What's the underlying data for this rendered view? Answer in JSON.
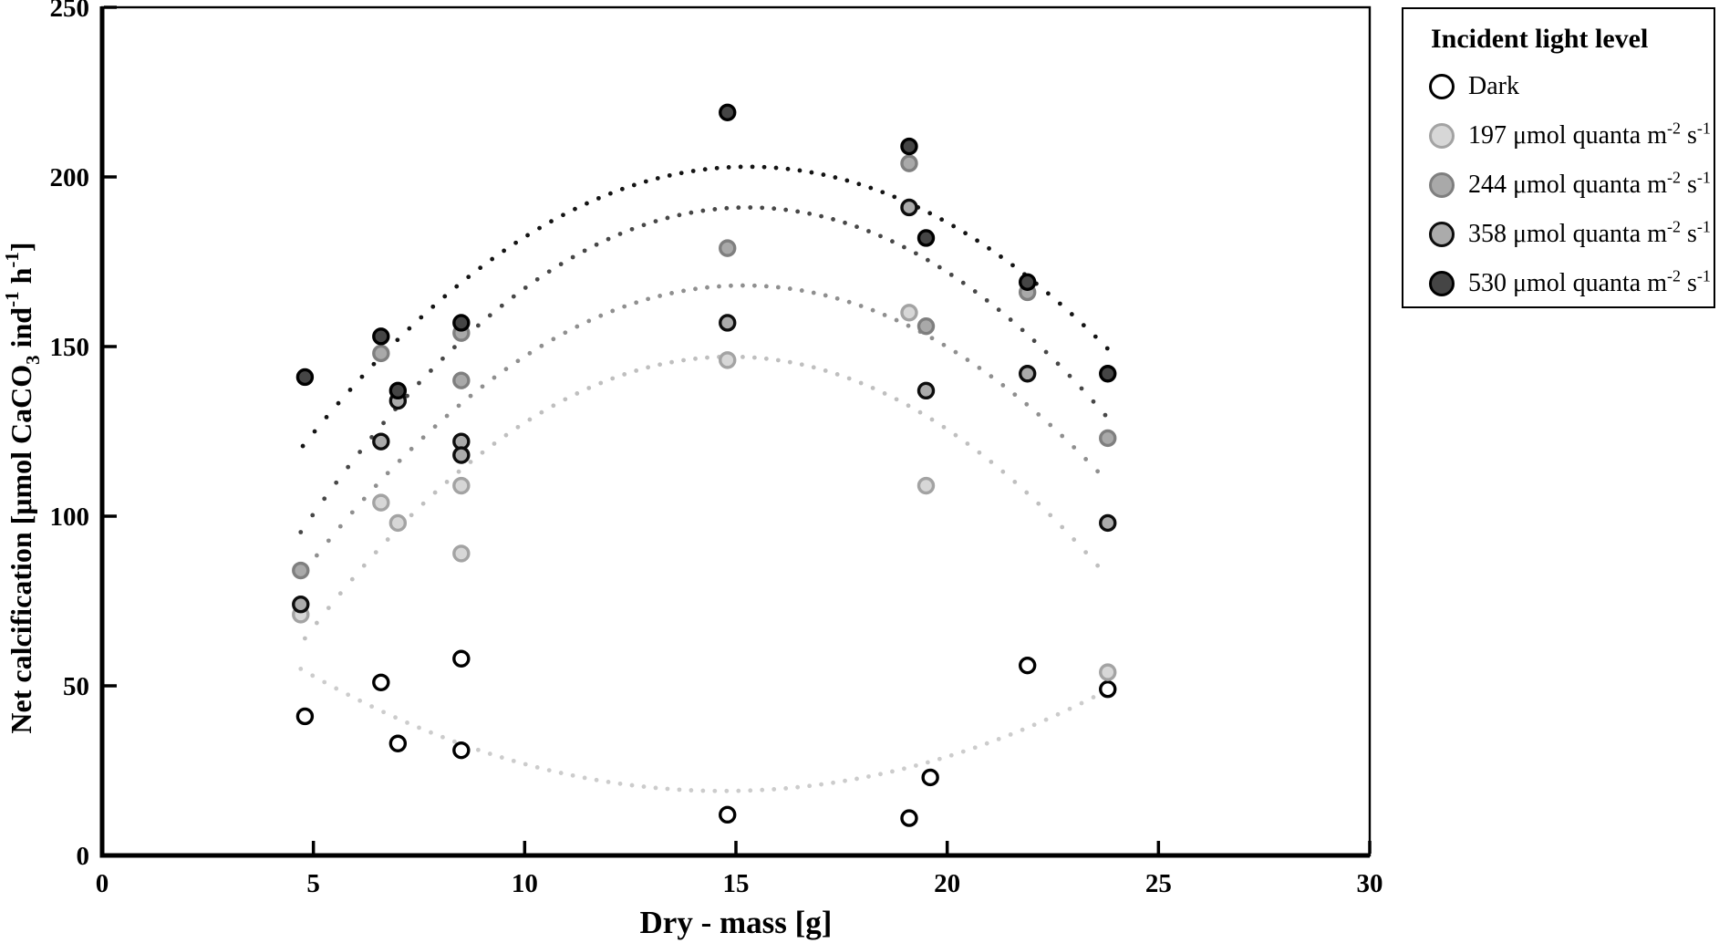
{
  "figure": {
    "background": "#ffffff",
    "x_axis": {
      "label": "Dry - mass [g]",
      "min": 0,
      "max": 30,
      "ticks": [
        0,
        5,
        10,
        15,
        20,
        25,
        30
      ]
    },
    "y_axis": {
      "label": "Net calcification [μmol CaCO3 ind-1 h-1]",
      "min": 0,
      "max": 250,
      "ticks": [
        0,
        50,
        100,
        150,
        200,
        250
      ],
      "title_parts": [
        {
          "text": "Net calcification [μmol CaCO"
        },
        {
          "text": "3",
          "script": "sub"
        },
        {
          "text": " ind"
        },
        {
          "text": "-1",
          "script": "sup"
        },
        {
          "text": " h"
        },
        {
          "text": "-1",
          "script": "sup"
        },
        {
          "text": "]"
        }
      ]
    },
    "legend": {
      "title": "Incident light level",
      "position": "right-outside"
    }
  },
  "chart_data": {
    "type": "scatter",
    "title": "",
    "xlabel": "Dry - mass [g]",
    "ylabel": "Net calcification [μmol CaCO3 ind-1 h-1]",
    "xlim": [
      0,
      30
    ],
    "ylim": [
      0,
      250
    ],
    "grid": false,
    "legend_position": "right",
    "series": [
      {
        "name": "Dark",
        "label_parts": [
          {
            "text": "Dark"
          }
        ],
        "marker": {
          "fill": "#ffffff",
          "stroke": "#000000"
        },
        "trend_color": "#cccccc",
        "points": [
          [
            4.8,
            41
          ],
          [
            6.6,
            51
          ],
          [
            7.0,
            33
          ],
          [
            8.5,
            31
          ],
          [
            8.5,
            58
          ],
          [
            14.8,
            12
          ],
          [
            19.1,
            11
          ],
          [
            19.6,
            23
          ],
          [
            21.9,
            56
          ],
          [
            23.8,
            49
          ]
        ],
        "trend": {
          "shape": "parabola",
          "vertex_x": 14.7,
          "vertex_y": 19,
          "curvature": 0.36,
          "x_range": [
            4.7,
            23.7
          ]
        }
      },
      {
        "name": "197 μmol quanta m-2 s-1",
        "label_parts": [
          {
            "text": "197 μmol quanta m"
          },
          {
            "text": "-2",
            "script": "sup"
          },
          {
            "text": " s"
          },
          {
            "text": "-1",
            "script": "sup"
          }
        ],
        "marker": {
          "fill": "#d7d7d7",
          "stroke": "#a3a3a3"
        },
        "trend_color": "#bfbfbf",
        "points": [
          [
            4.7,
            71
          ],
          [
            6.6,
            104
          ],
          [
            7.0,
            98
          ],
          [
            8.5,
            109
          ],
          [
            8.5,
            89
          ],
          [
            14.8,
            146
          ],
          [
            19.1,
            160
          ],
          [
            19.5,
            109
          ],
          [
            23.8,
            54
          ]
        ],
        "trend": {
          "shape": "parabola",
          "vertex_x": 14.88,
          "vertex_y": 147,
          "curvature": -0.817,
          "x_range": [
            4.8,
            23.8
          ]
        }
      },
      {
        "name": "244 μmol quanta m-2 s-1",
        "label_parts": [
          {
            "text": "244 μmol quanta m"
          },
          {
            "text": "-2",
            "script": "sup"
          },
          {
            "text": " s"
          },
          {
            "text": "-1",
            "script": "sup"
          }
        ],
        "marker": {
          "fill": "#a9a9a9",
          "stroke": "#7f7f7f"
        },
        "trend_color": "#8f8f8f",
        "points": [
          [
            4.7,
            84
          ],
          [
            6.6,
            148
          ],
          [
            8.5,
            154
          ],
          [
            8.5,
            140
          ],
          [
            14.8,
            179
          ],
          [
            19.1,
            204
          ],
          [
            19.5,
            156
          ],
          [
            21.9,
            166
          ],
          [
            23.8,
            123
          ]
        ],
        "trend": {
          "shape": "parabola",
          "vertex_x": 15.18,
          "vertex_y": 168,
          "curvature": -0.78,
          "x_range": [
            4.8,
            23.8
          ]
        }
      },
      {
        "name": "358 μmol quanta m-2 s-1",
        "label_parts": [
          {
            "text": "358 μmol quanta m"
          },
          {
            "text": "-2",
            "script": "sup"
          },
          {
            "text": " s"
          },
          {
            "text": "-1",
            "script": "sup"
          }
        ],
        "marker": {
          "fill": "#ababab",
          "stroke": "#0d0d0d"
        },
        "trend_color": "#474747",
        "points": [
          [
            4.7,
            74
          ],
          [
            6.6,
            122
          ],
          [
            7.0,
            134
          ],
          [
            8.5,
            122
          ],
          [
            8.5,
            118
          ],
          [
            14.8,
            157
          ],
          [
            19.1,
            191
          ],
          [
            19.5,
            137
          ],
          [
            21.9,
            142
          ],
          [
            23.8,
            98
          ]
        ],
        "trend": {
          "shape": "parabola",
          "vertex_x": 15.28,
          "vertex_y": 191,
          "curvature": -0.855,
          "x_range": [
            4.7,
            23.75
          ]
        }
      },
      {
        "name": "530 μmol quanta m-2 s-1",
        "label_parts": [
          {
            "text": "530 μmol quanta m"
          },
          {
            "text": "-2",
            "script": "sup"
          },
          {
            "text": " s"
          },
          {
            "text": "-1",
            "script": "sup"
          }
        ],
        "marker": {
          "fill": "#454545",
          "stroke": "#000000"
        },
        "trend_color": "#141414",
        "points": [
          [
            4.8,
            141
          ],
          [
            6.6,
            153
          ],
          [
            7.0,
            137
          ],
          [
            8.5,
            157
          ],
          [
            14.8,
            219
          ],
          [
            19.1,
            209
          ],
          [
            19.5,
            182
          ],
          [
            21.9,
            169
          ],
          [
            23.8,
            142
          ]
        ],
        "trend": {
          "shape": "parabola",
          "vertex_x": 15.29,
          "vertex_y": 203,
          "curvature": -0.741,
          "x_range": [
            4.75,
            23.8
          ]
        }
      }
    ]
  }
}
